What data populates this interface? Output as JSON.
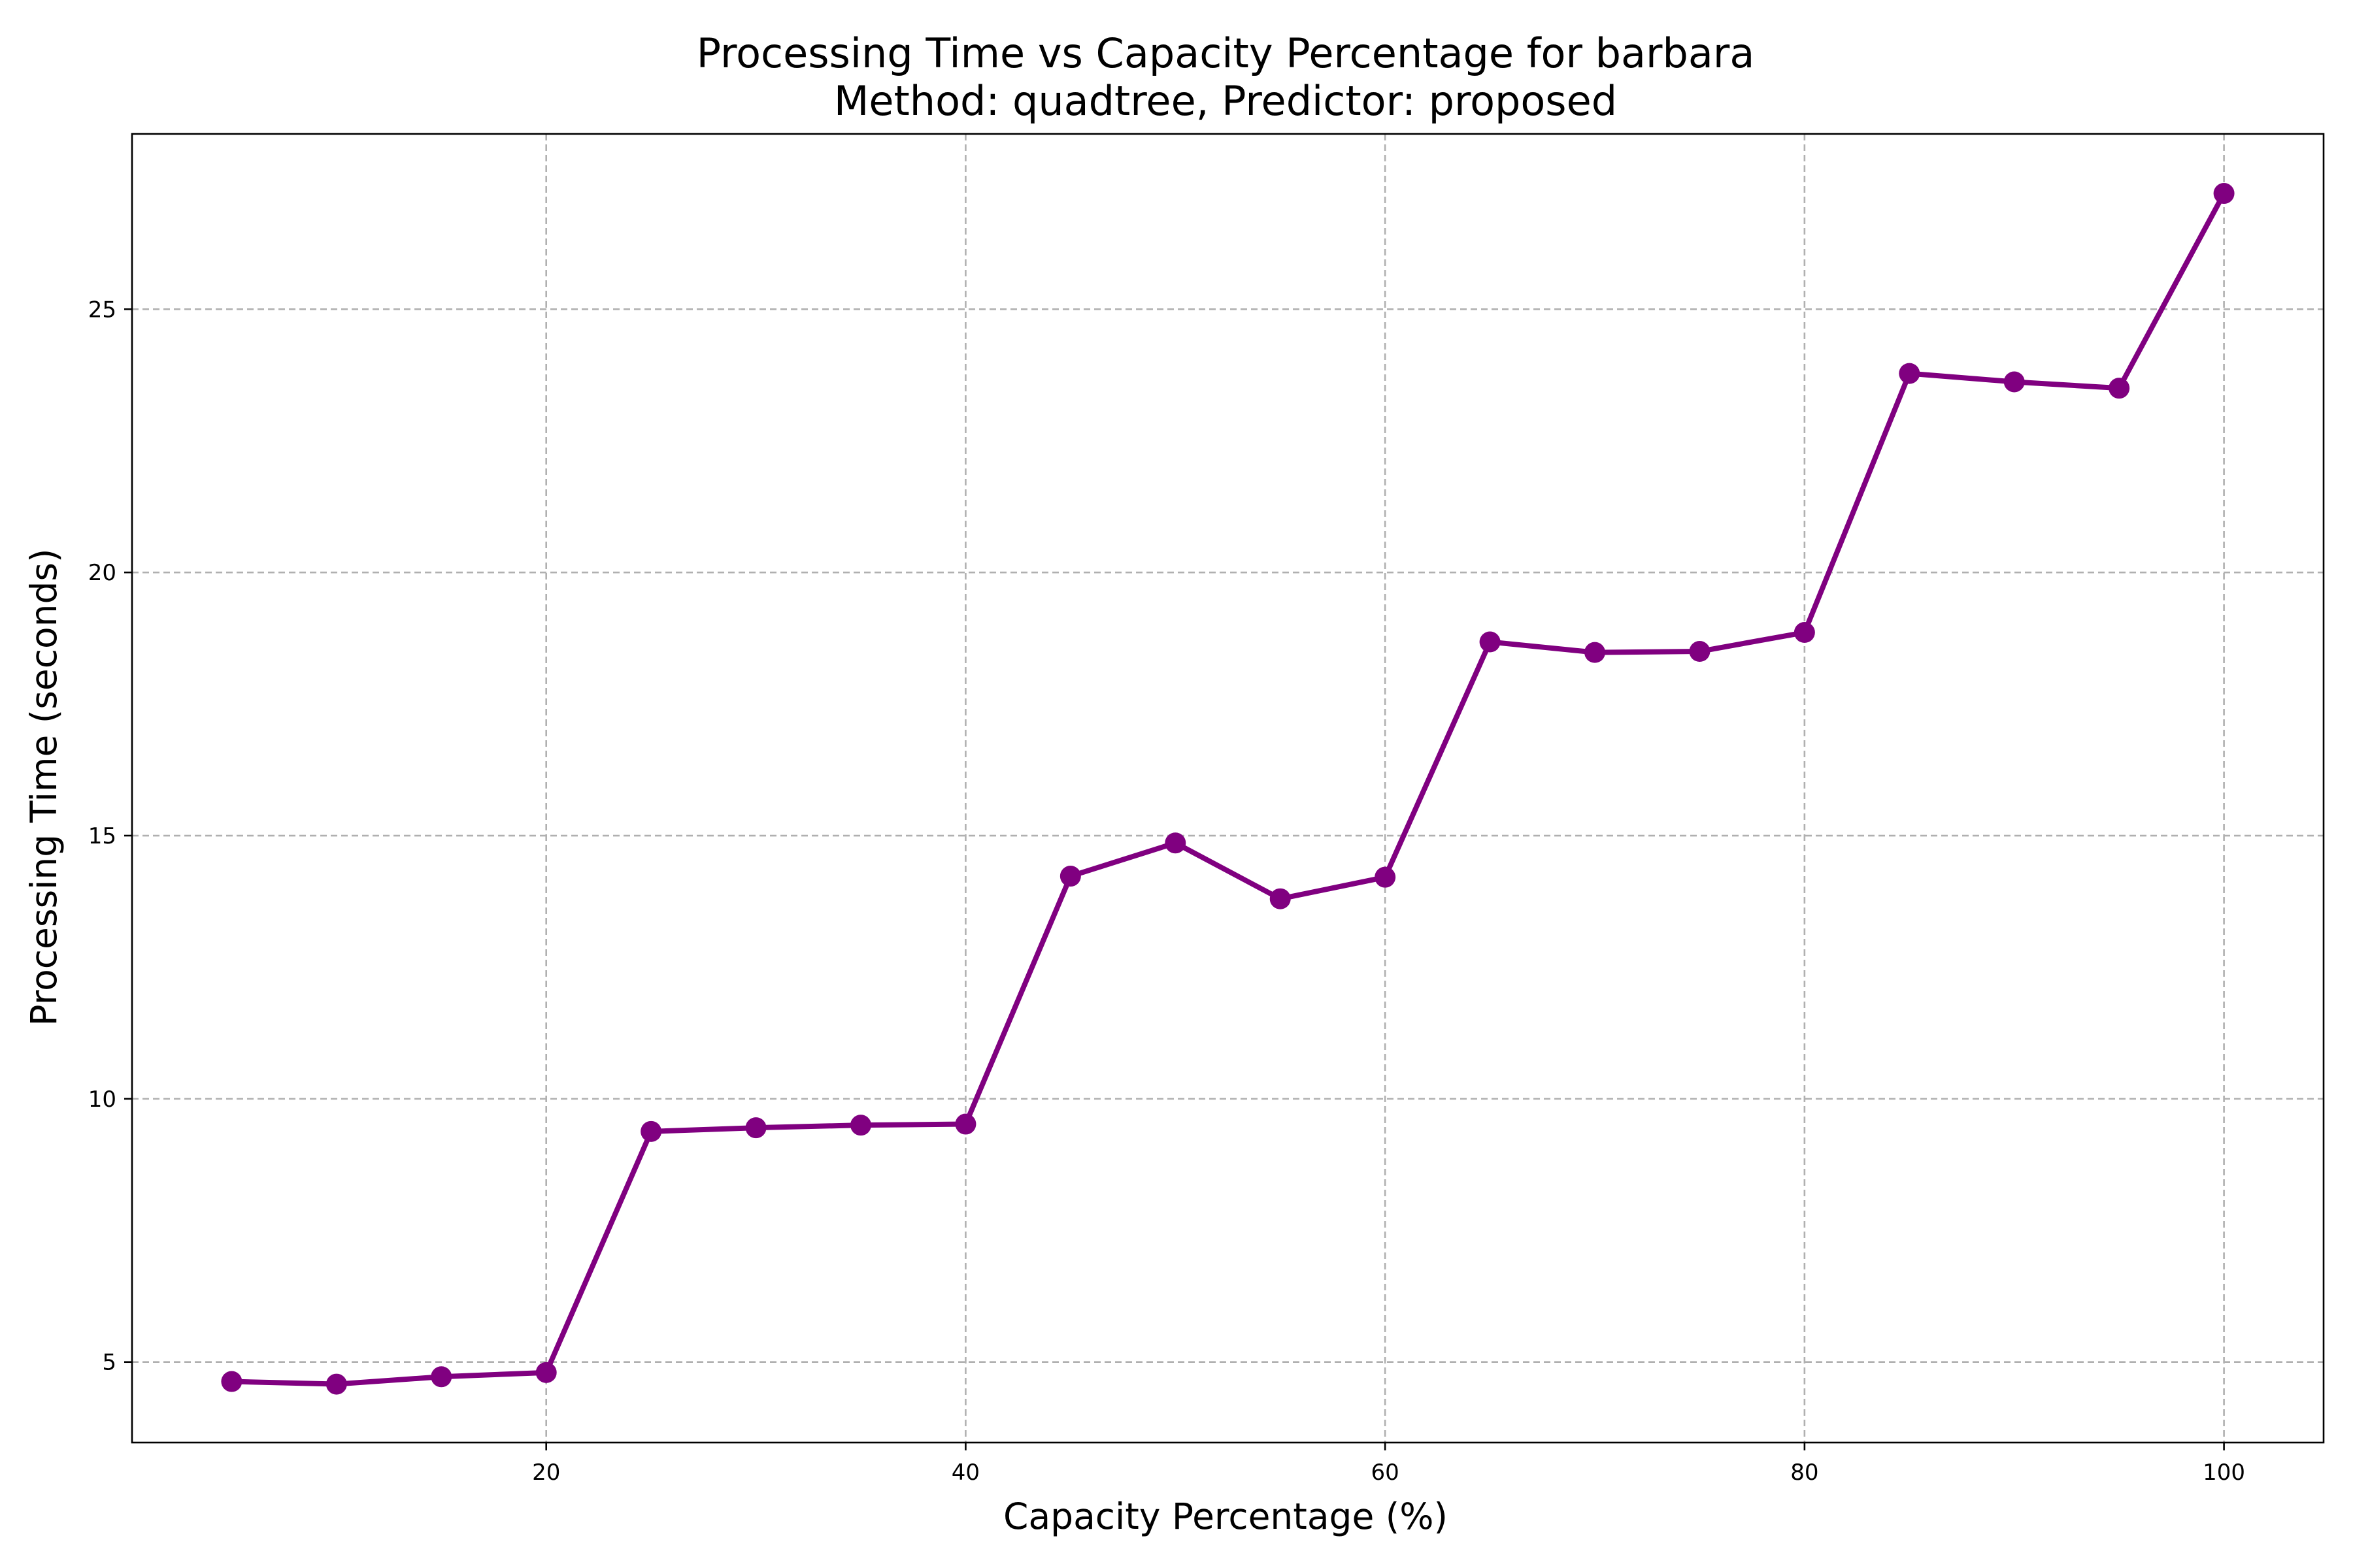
{
  "chart_data": {
    "type": "line",
    "title": "Processing Time vs Capacity Percentage for barbara",
    "subtitle": "Method: quadtree, Predictor: proposed",
    "xlabel": "Capacity Percentage (%)",
    "ylabel": "Processing Time (seconds)",
    "xlim": [
      0.25,
      104.75
    ],
    "ylim": [
      3.47,
      28.33
    ],
    "xticks": [
      20,
      40,
      60,
      80,
      100
    ],
    "yticks": [
      5,
      10,
      15,
      20,
      25
    ],
    "grid": true,
    "line_color": "#800080",
    "x": [
      5,
      10,
      15,
      20,
      25,
      30,
      35,
      40,
      45,
      50,
      55,
      60,
      65,
      70,
      75,
      80,
      85,
      90,
      95,
      100
    ],
    "series": [
      {
        "values": [
          4.63,
          4.58,
          4.72,
          4.8,
          9.38,
          9.45,
          9.5,
          9.52,
          14.23,
          14.86,
          13.8,
          14.21,
          18.68,
          18.48,
          18.5,
          18.86,
          23.78,
          23.62,
          23.5,
          27.2
        ]
      }
    ]
  }
}
